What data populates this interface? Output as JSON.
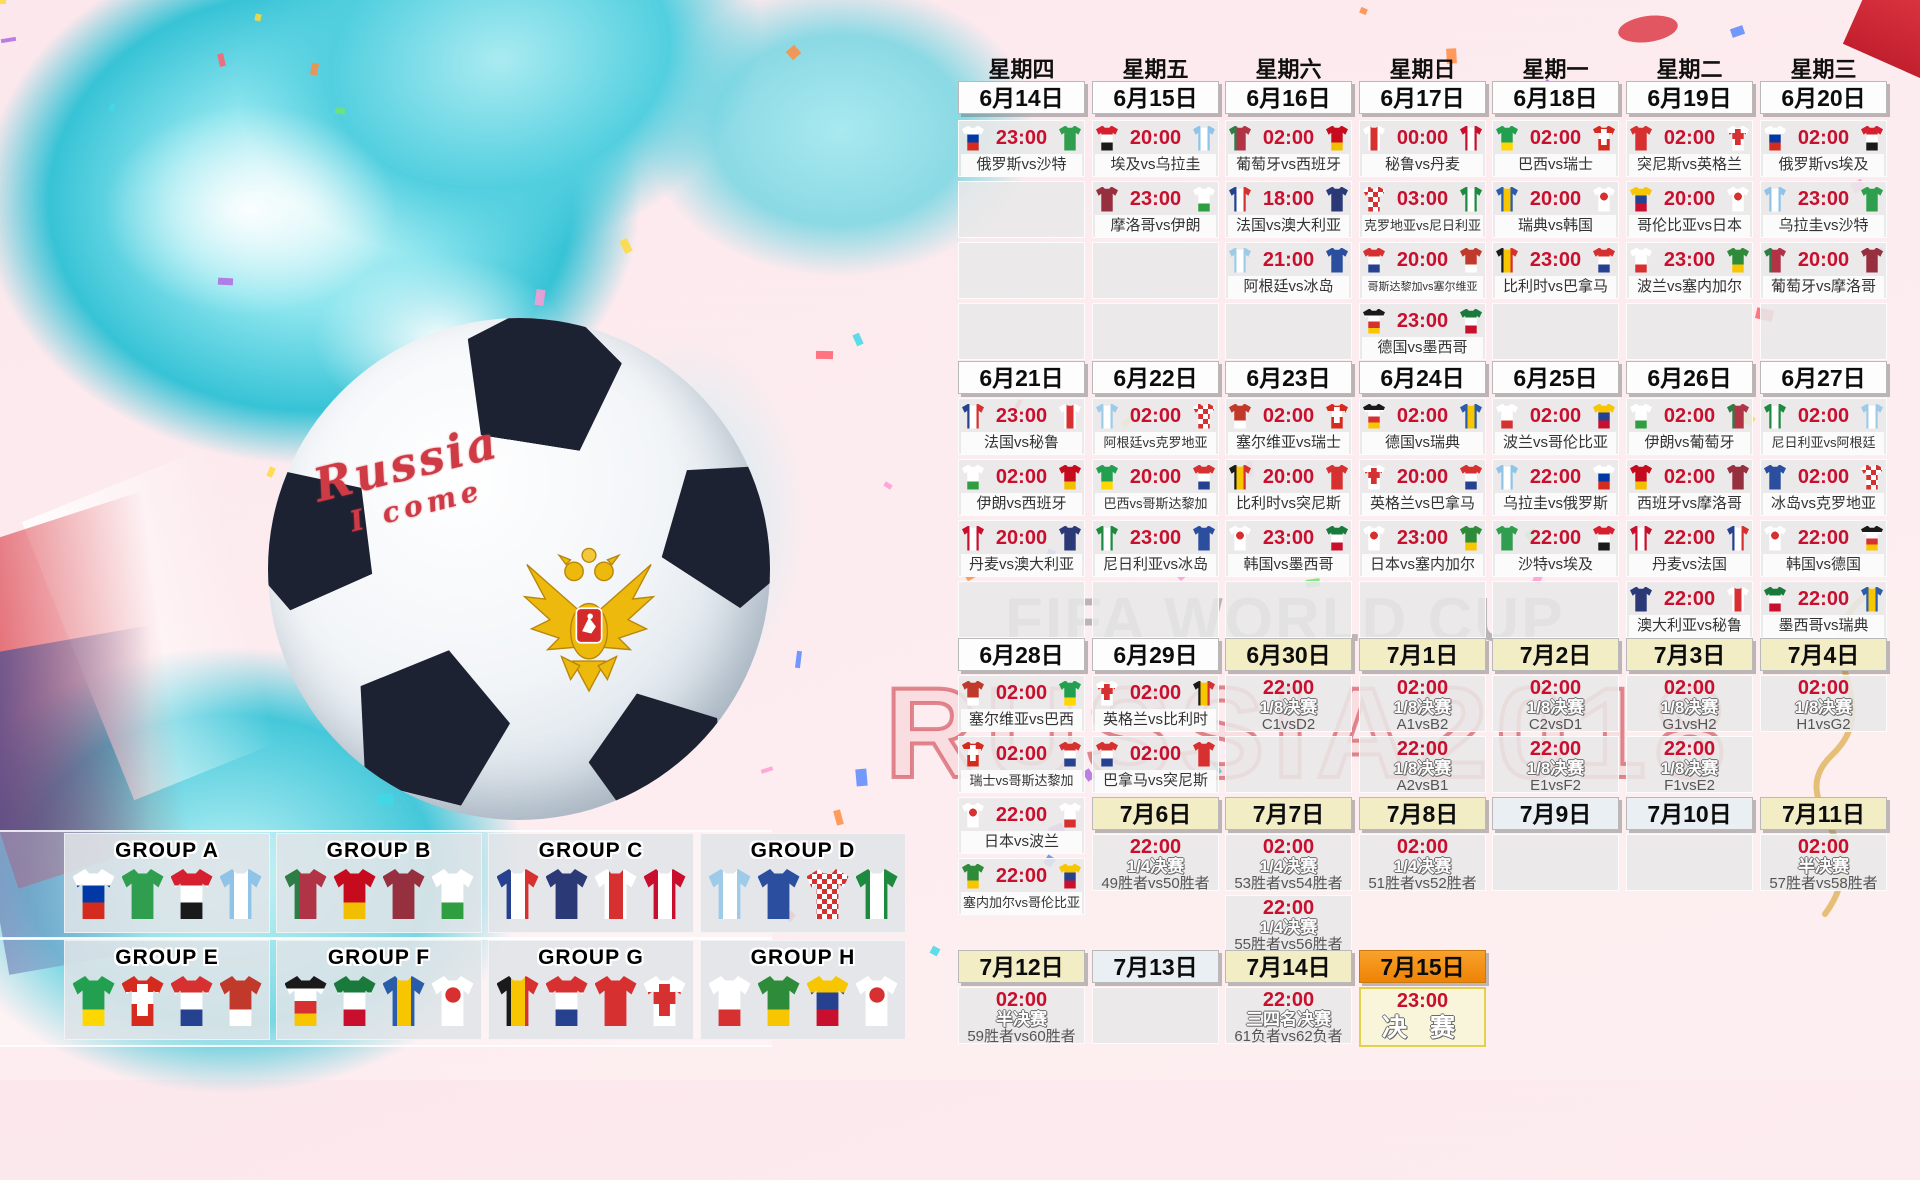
{
  "decor": {
    "watermark_line1": "FIFA WORLD CUP",
    "watermark_line2": "RUSSIA2018",
    "ball_text_line1": "Russia",
    "ball_text_line2": "I come"
  },
  "colors": {
    "accent_red": "#c8102e",
    "date_cream": "#f2edc5",
    "date_orange": "#f08c12",
    "cell_grey": "#e9e9e9",
    "watermark_grey": "#8f8f8f",
    "watermark_red": "#c21f2e",
    "splash_teal": "#2fc0d4"
  },
  "calendar": {
    "weekdays": [
      "星期四",
      "星期五",
      "星期六",
      "星期日",
      "星期一",
      "星期二",
      "星期三"
    ],
    "sections": [
      {
        "colStart": 0,
        "dates": [
          {
            "l": "6月14日",
            "v": "white"
          },
          {
            "l": "6月15日",
            "v": "white"
          },
          {
            "l": "6月16日",
            "v": "white"
          },
          {
            "l": "6月17日",
            "v": "white"
          },
          {
            "l": "6月18日",
            "v": "white"
          },
          {
            "l": "6月19日",
            "v": "white"
          },
          {
            "l": "6月20日",
            "v": "white"
          }
        ],
        "cells": [
          [
            {
              "t": "23:00",
              "h": "俄罗斯",
              "a": "沙特"
            },
            null,
            null,
            null
          ],
          [
            {
              "t": "20:00",
              "h": "埃及",
              "a": "乌拉圭"
            },
            {
              "t": "23:00",
              "h": "摩洛哥",
              "a": "伊朗"
            },
            null,
            null
          ],
          [
            {
              "t": "02:00",
              "h": "葡萄牙",
              "a": "西班牙"
            },
            {
              "t": "18:00",
              "h": "法国",
              "a": "澳大利亚"
            },
            {
              "t": "21:00",
              "h": "阿根廷",
              "a": "冰岛"
            },
            null
          ],
          [
            {
              "t": "00:00",
              "h": "秘鲁",
              "a": "丹麦"
            },
            {
              "t": "03:00",
              "h": "克罗地亚",
              "a": "尼日利亚"
            },
            {
              "t": "20:00",
              "h": "哥斯达黎加",
              "a": "塞尔维亚"
            },
            {
              "t": "23:00",
              "h": "德国",
              "a": "墨西哥"
            }
          ],
          [
            {
              "t": "02:00",
              "h": "巴西",
              "a": "瑞士"
            },
            {
              "t": "20:00",
              "h": "瑞典",
              "a": "韩国"
            },
            {
              "t": "23:00",
              "h": "比利时",
              "a": "巴拿马"
            },
            null
          ],
          [
            {
              "t": "02:00",
              "h": "突尼斯",
              "a": "英格兰"
            },
            {
              "t": "20:00",
              "h": "哥伦比亚",
              "a": "日本"
            },
            {
              "t": "23:00",
              "h": "波兰",
              "a": "塞内加尔"
            },
            null
          ],
          [
            {
              "t": "02:00",
              "h": "俄罗斯",
              "a": "埃及"
            },
            {
              "t": "23:00",
              "h": "乌拉圭",
              "a": "沙特"
            },
            {
              "t": "20:00",
              "h": "葡萄牙",
              "a": "摩洛哥"
            },
            null
          ]
        ]
      },
      {
        "colStart": 0,
        "dates": [
          {
            "l": "6月21日",
            "v": "white"
          },
          {
            "l": "6月22日",
            "v": "white"
          },
          {
            "l": "6月23日",
            "v": "white"
          },
          {
            "l": "6月24日",
            "v": "white"
          },
          {
            "l": "6月25日",
            "v": "white"
          },
          {
            "l": "6月26日",
            "v": "white"
          },
          {
            "l": "6月27日",
            "v": "white"
          }
        ],
        "cells": [
          [
            {
              "t": "23:00",
              "h": "法国",
              "a": "秘鲁"
            },
            {
              "t": "02:00",
              "h": "伊朗",
              "a": "西班牙"
            },
            {
              "t": "20:00",
              "h": "丹麦",
              "a": "澳大利亚"
            },
            null
          ],
          [
            {
              "t": "02:00",
              "h": "阿根廷",
              "a": "克罗地亚"
            },
            {
              "t": "20:00",
              "h": "巴西",
              "a": "哥斯达黎加"
            },
            {
              "t": "23:00",
              "h": "尼日利亚",
              "a": "冰岛"
            },
            null
          ],
          [
            {
              "t": "02:00",
              "h": "塞尔维亚",
              "a": "瑞士"
            },
            {
              "t": "20:00",
              "h": "比利时",
              "a": "突尼斯"
            },
            {
              "t": "23:00",
              "h": "韩国",
              "a": "墨西哥"
            },
            null
          ],
          [
            {
              "t": "02:00",
              "h": "德国",
              "a": "瑞典"
            },
            {
              "t": "20:00",
              "h": "英格兰",
              "a": "巴拿马"
            },
            {
              "t": "23:00",
              "h": "日本",
              "a": "塞内加尔"
            },
            null
          ],
          [
            {
              "t": "02:00",
              "h": "波兰",
              "a": "哥伦比亚"
            },
            {
              "t": "22:00",
              "h": "乌拉圭",
              "a": "俄罗斯"
            },
            {
              "t": "22:00",
              "h": "沙特",
              "a": "埃及"
            },
            null
          ],
          [
            {
              "t": "02:00",
              "h": "伊朗",
              "a": "葡萄牙"
            },
            {
              "t": "02:00",
              "h": "西班牙",
              "a": "摩洛哥"
            },
            {
              "t": "22:00",
              "h": "丹麦",
              "a": "法国"
            },
            {
              "t": "22:00",
              "h": "澳大利亚",
              "a": "秘鲁"
            }
          ],
          [
            {
              "t": "02:00",
              "h": "尼日利亚",
              "a": "阿根廷"
            },
            {
              "t": "02:00",
              "h": "冰岛",
              "a": "克罗地亚"
            },
            {
              "t": "22:00",
              "h": "韩国",
              "a": "德国"
            },
            {
              "t": "22:00",
              "h": "墨西哥",
              "a": "瑞典"
            }
          ]
        ]
      },
      {
        "colStart": 0,
        "dates": [
          {
            "l": "6月28日",
            "v": "white"
          },
          {
            "l": "6月29日",
            "v": "white"
          },
          {
            "l": "6月30日",
            "v": "cream"
          },
          {
            "l": "7月1日",
            "v": "cream"
          },
          {
            "l": "7月2日",
            "v": "cream"
          },
          {
            "l": "7月3日",
            "v": "cream"
          },
          {
            "l": "7月4日",
            "v": "cream"
          }
        ],
        "cells": [
          [
            {
              "t": "02:00",
              "h": "塞尔维亚",
              "a": "巴西"
            },
            {
              "t": "02:00",
              "h": "瑞士",
              "a": "哥斯达黎加"
            },
            {
              "t": "22:00",
              "h": "日本",
              "a": "波兰"
            },
            {
              "t": "22:00",
              "h": "塞内加尔",
              "a": "哥伦比亚"
            }
          ],
          [
            {
              "t": "02:00",
              "h": "英格兰",
              "a": "比利时"
            },
            {
              "t": "02:00",
              "h": "巴拿马",
              "a": "突尼斯"
            }
          ],
          [
            {
              "t": "22:00",
              "s": "1/8决赛",
              "p": "C1vsD2"
            },
            null
          ],
          [
            {
              "t": "02:00",
              "s": "1/8决赛",
              "p": "A1vsB2"
            },
            {
              "t": "22:00",
              "s": "1/8决赛",
              "p": "A2vsB1"
            }
          ],
          [
            {
              "t": "02:00",
              "s": "1/8决赛",
              "p": "C2vsD1"
            },
            {
              "t": "22:00",
              "s": "1/8决赛",
              "p": "E1vsF2"
            }
          ],
          [
            {
              "t": "02:00",
              "s": "1/8决赛",
              "p": "G1vsH2"
            },
            {
              "t": "22:00",
              "s": "1/8决赛",
              "p": "F1vsE2"
            }
          ],
          [
            {
              "t": "02:00",
              "s": "1/8决赛",
              "p": "H1vsG2"
            }
          ]
        ]
      },
      {
        "colStart": 1,
        "dates": [
          {
            "l": "7月6日",
            "v": "cream"
          },
          {
            "l": "7月7日",
            "v": "cream"
          },
          {
            "l": "7月8日",
            "v": "cream"
          },
          {
            "l": "7月9日",
            "v": "pale"
          },
          {
            "l": "7月10日",
            "v": "pale"
          },
          {
            "l": "7月11日",
            "v": "cream"
          }
        ],
        "cells": [
          [
            {
              "t": "22:00",
              "s": "1/4决赛",
              "p": "49胜者vs50胜者"
            }
          ],
          [
            {
              "t": "02:00",
              "s": "1/4决赛",
              "p": "53胜者vs54胜者"
            },
            {
              "t": "22:00",
              "s": "1/4决赛",
              "p": "55胜者vs56胜者"
            }
          ],
          [
            {
              "t": "02:00",
              "s": "1/4决赛",
              "p": "51胜者vs52胜者"
            }
          ],
          [
            null
          ],
          [
            null
          ],
          [
            {
              "t": "02:00",
              "s": "半决赛",
              "p": "57胜者vs58胜者"
            }
          ]
        ]
      },
      {
        "colStart": 0,
        "dates": [
          {
            "l": "7月12日",
            "v": "cream"
          },
          {
            "l": "7月13日",
            "v": "pale"
          },
          {
            "l": "7月14日",
            "v": "cream"
          },
          {
            "l": "7月15日",
            "v": "orange"
          }
        ],
        "cells": [
          [
            {
              "t": "02:00",
              "s": "半决赛",
              "p": "59胜者vs60胜者"
            }
          ],
          [
            null
          ],
          [
            {
              "t": "22:00",
              "s": "三四名决赛",
              "p": "61负者vs62负者"
            }
          ],
          [
            {
              "t": "23:00",
              "s": "决 赛",
              "f": true
            }
          ]
        ]
      }
    ]
  },
  "groups": [
    {
      "name": "GROUP A",
      "teams": [
        "俄罗斯",
        "沙特",
        "埃及",
        "乌拉圭"
      ]
    },
    {
      "name": "GROUP B",
      "teams": [
        "葡萄牙",
        "西班牙",
        "摩洛哥",
        "伊朗"
      ]
    },
    {
      "name": "GROUP C",
      "teams": [
        "法国",
        "澳大利亚",
        "秘鲁",
        "丹麦"
      ]
    },
    {
      "name": "GROUP D",
      "teams": [
        "阿根廷",
        "冰岛",
        "克罗地亚",
        "尼日利亚"
      ]
    },
    {
      "name": "GROUP E",
      "teams": [
        "巴西",
        "瑞士",
        "哥斯达黎加",
        "塞尔维亚"
      ]
    },
    {
      "name": "GROUP F",
      "teams": [
        "德国",
        "墨西哥",
        "瑞典",
        "韩国"
      ]
    },
    {
      "name": "GROUP G",
      "teams": [
        "比利时",
        "巴拿马",
        "突尼斯",
        "英格兰"
      ]
    },
    {
      "name": "GROUP H",
      "teams": [
        "波兰",
        "塞内加尔",
        "哥伦比亚",
        "日本"
      ]
    }
  ],
  "teams": {
    "俄罗斯": {
      "pattern": "h",
      "colors": [
        "#ffffff",
        "#0039a6",
        "#d52b1e"
      ]
    },
    "沙特": {
      "pattern": "solid",
      "colors": [
        "#2f9e4f"
      ]
    },
    "埃及": {
      "pattern": "h",
      "colors": [
        "#d6202f",
        "#ffffff",
        "#1a1a1a"
      ]
    },
    "乌拉圭": {
      "pattern": "v",
      "colors": [
        "#8fc3e8",
        "#ffffff",
        "#8fc3e8"
      ]
    },
    "葡萄牙": {
      "pattern": "v",
      "colors": [
        "#2e7d46",
        "#b03346",
        "#b03346"
      ]
    },
    "西班牙": {
      "pattern": "h",
      "colors": [
        "#c60b1e",
        "#c60b1e",
        "#f1bf00"
      ]
    },
    "摩洛哥": {
      "pattern": "solid",
      "colors": [
        "#962f3e"
      ]
    },
    "伊朗": {
      "pattern": "h",
      "colors": [
        "#ffffff",
        "#ffffff",
        "#2e9e41"
      ]
    },
    "法国": {
      "pattern": "v",
      "colors": [
        "#26418f",
        "#ffffff",
        "#d63031"
      ]
    },
    "澳大利亚": {
      "pattern": "solid",
      "colors": [
        "#2b3a77"
      ]
    },
    "秘鲁": {
      "pattern": "v",
      "colors": [
        "#ffffff",
        "#d63031",
        "#ffffff"
      ]
    },
    "丹麦": {
      "pattern": "v",
      "colors": [
        "#c8102e",
        "#ffffff",
        "#c8102e"
      ]
    },
    "阿根廷": {
      "pattern": "v",
      "colors": [
        "#9ecbe8",
        "#ffffff",
        "#9ecbe8"
      ]
    },
    "冰岛": {
      "pattern": "solid",
      "colors": [
        "#2b4f9e"
      ]
    },
    "克罗地亚": {
      "pattern": "check",
      "colors": [
        "#d63031",
        "#ffffff"
      ]
    },
    "尼日利亚": {
      "pattern": "v",
      "colors": [
        "#1d8a3f",
        "#ffffff",
        "#1d8a3f"
      ]
    },
    "巴西": {
      "pattern": "h",
      "colors": [
        "#23a04f",
        "#23a04f",
        "#ffd700"
      ]
    },
    "瑞士": {
      "pattern": "cross",
      "colors": [
        "#d52b1e",
        "#ffffff"
      ]
    },
    "哥斯达黎加": {
      "pattern": "h",
      "colors": [
        "#d63031",
        "#ffffff",
        "#26418f"
      ]
    },
    "塞尔维亚": {
      "pattern": "h",
      "colors": [
        "#c0392b",
        "#c0392b",
        "#ffffff"
      ]
    },
    "德国": {
      "pattern": "h",
      "colors": [
        "#1a1a1a",
        "#ffffff",
        "#d63031",
        "#f7c600"
      ]
    },
    "墨西哥": {
      "pattern": "h",
      "colors": [
        "#1a7a3c",
        "#ffffff",
        "#c8102e"
      ]
    },
    "瑞典": {
      "pattern": "v",
      "colors": [
        "#2a5caa",
        "#f7c600",
        "#2a5caa"
      ]
    },
    "韩国": {
      "pattern": "dot",
      "colors": [
        "#ffffff",
        "#d63031"
      ]
    },
    "比利时": {
      "pattern": "v",
      "colors": [
        "#1a1a1a",
        "#f7c600",
        "#d63031"
      ]
    },
    "巴拿马": {
      "pattern": "h",
      "colors": [
        "#d63031",
        "#ffffff",
        "#26418f"
      ]
    },
    "突尼斯": {
      "pattern": "solid",
      "colors": [
        "#d63031"
      ]
    },
    "英格兰": {
      "pattern": "cross",
      "colors": [
        "#ffffff",
        "#d63031"
      ]
    },
    "波兰": {
      "pattern": "h",
      "colors": [
        "#ffffff",
        "#ffffff",
        "#d63031"
      ]
    },
    "塞内加尔": {
      "pattern": "h",
      "colors": [
        "#2e8b3a",
        "#2e8b3a",
        "#f7c600"
      ]
    },
    "哥伦比亚": {
      "pattern": "h",
      "colors": [
        "#f7c600",
        "#26418f",
        "#c8102e"
      ]
    },
    "日本": {
      "pattern": "dot",
      "colors": [
        "#ffffff",
        "#d63031"
      ]
    }
  }
}
